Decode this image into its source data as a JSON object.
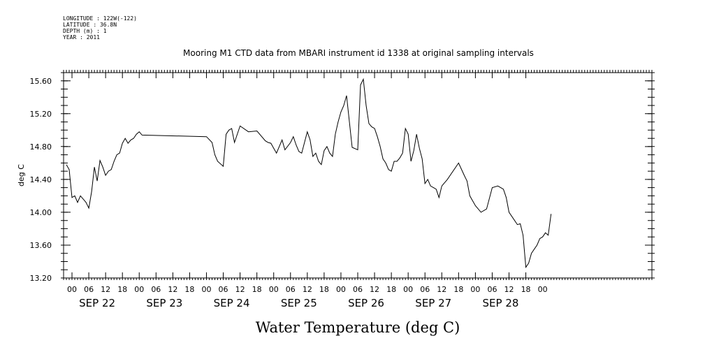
{
  "header": {
    "longitude": "LONGITUDE : 122W(-122)",
    "latitude": "LATITUDE : 36.8N",
    "depth": "DEPTH (m) : 1",
    "year": "YEAR : 2011"
  },
  "chart_data": {
    "type": "line",
    "title": "Mooring M1 CTD data from MBARI instrument id 1338 at original sampling intervals",
    "xlabel": "Water Temperature (deg C)",
    "ylabel": "deg C",
    "grid": false,
    "ylim": [
      13.2,
      15.7
    ],
    "xlim_hours": [
      -3,
      207
    ],
    "y_ticks": [
      "13.20",
      "13.60",
      "14.00",
      "14.40",
      "14.80",
      "15.20",
      "15.60"
    ],
    "hour_ticks": [
      "00",
      "06",
      "12",
      "18"
    ],
    "days": [
      "SEP 22",
      "SEP 23",
      "SEP 24",
      "SEP 25",
      "SEP 26",
      "SEP 27",
      "SEP 28"
    ],
    "series": [
      {
        "x": [
          "2011-09-22T00:00",
          "2011-09-22T01:00",
          "2011-09-22T02:00",
          "2011-09-22T03:00",
          "2011-09-22T04:00",
          "2011-09-22T05:00",
          "2011-09-22T06:00",
          "2011-09-22T07:00",
          "2011-09-22T08:00",
          "2011-09-22T09:00",
          "2011-09-22T10:00",
          "2011-09-22T11:00",
          "2011-09-22T12:00",
          "2011-09-22T13:00",
          "2011-09-22T14:00",
          "2011-09-22T15:00",
          "2011-09-22T16:00",
          "2011-09-22T17:00",
          "2011-09-22T18:00",
          "2011-09-22T19:00",
          "2011-09-22T20:00",
          "2011-09-22T21:00",
          "2011-09-22T22:00",
          "2011-09-22T23:00",
          "2011-09-23T00:00",
          "2011-09-23T01:00",
          "2011-09-23T02:00",
          "2011-09-23T03:00",
          "2011-09-23T18:00",
          "2011-09-23T20:00",
          "2011-09-23T21:00",
          "2011-09-23T22:00",
          "2011-09-24T00:00",
          "2011-09-24T01:00",
          "2011-09-24T02:00",
          "2011-09-24T03:00",
          "2011-09-24T04:00",
          "2011-09-24T06:00",
          "2011-09-24T09:00",
          "2011-09-24T12:00",
          "2011-09-24T15:00",
          "2011-09-24T16:00",
          "2011-09-24T17:00",
          "2011-09-24T18:00",
          "2011-09-24T19:00",
          "2011-09-24T20:00",
          "2011-09-24T21:00",
          "2011-09-24T22:00",
          "2011-09-25T00:00",
          "2011-09-25T01:00",
          "2011-09-25T02:00",
          "2011-09-25T03:00",
          "2011-09-25T04:00",
          "2011-09-25T05:00",
          "2011-09-25T06:00",
          "2011-09-25T07:00",
          "2011-09-25T08:00",
          "2011-09-25T09:00",
          "2011-09-25T10:00",
          "2011-09-25T11:00",
          "2011-09-25T12:00",
          "2011-09-25T13:00",
          "2011-09-25T14:00",
          "2011-09-25T15:00",
          "2011-09-25T16:00",
          "2011-09-25T17:00",
          "2011-09-25T18:00",
          "2011-09-25T19:00",
          "2011-09-25T20:00",
          "2011-09-25T22:00",
          "2011-09-26T00:00",
          "2011-09-26T01:00",
          "2011-09-26T02:00",
          "2011-09-26T03:00",
          "2011-09-26T04:00",
          "2011-09-26T05:00",
          "2011-09-26T06:00",
          "2011-09-26T07:00",
          "2011-09-26T08:00",
          "2011-09-26T09:00",
          "2011-09-26T10:00",
          "2011-09-26T11:00",
          "2011-09-26T12:00",
          "2011-09-26T13:00",
          "2011-09-26T14:00",
          "2011-09-26T15:00",
          "2011-09-26T16:00",
          "2011-09-26T17:00",
          "2011-09-26T18:00",
          "2011-09-26T19:00",
          "2011-09-26T20:00",
          "2011-09-26T21:00",
          "2011-09-26T22:00",
          "2011-09-26T23:00",
          "2011-09-27T00:00",
          "2011-09-27T01:00",
          "2011-09-27T02:00",
          "2011-09-27T03:00",
          "2011-09-27T04:00",
          "2011-09-27T05:00",
          "2011-09-27T06:00",
          "2011-09-27T08:00",
          "2011-09-27T12:00",
          "2011-09-27T14:00",
          "2011-09-27T15:00",
          "2011-09-27T16:00",
          "2011-09-27T18:00",
          "2011-09-27T20:00",
          "2011-09-27T22:00",
          "2011-09-28T00:00",
          "2011-09-28T02:00",
          "2011-09-28T03:00",
          "2011-09-28T04:00",
          "2011-09-28T05:00",
          "2011-09-28T06:00",
          "2011-09-28T08:00",
          "2011-09-28T09:00",
          "2011-09-28T10:00",
          "2011-09-28T11:00",
          "2011-09-28T12:00",
          "2011-09-28T13:00",
          "2011-09-28T14:00",
          "2011-09-28T15:00",
          "2011-09-28T16:00",
          "2011-09-28T17:00",
          "2011-09-28T18:00",
          "2011-09-28T19:00",
          "2011-09-28T20:00",
          "2011-09-28T21:00"
        ],
        "hours": [
          -2,
          -1,
          0,
          1,
          2,
          3,
          4,
          5,
          6,
          7,
          8,
          9,
          10,
          11,
          12,
          13,
          14,
          15,
          16,
          17,
          18,
          19,
          20,
          21,
          22,
          23,
          24,
          25,
          48,
          50,
          51,
          52,
          54,
          55,
          56,
          57,
          58,
          60,
          63,
          66,
          69,
          70,
          71,
          72,
          73,
          74,
          75,
          76,
          78,
          79,
          80,
          81,
          82,
          83,
          84,
          85,
          86,
          87,
          88,
          89,
          90,
          91,
          92,
          93,
          94,
          95,
          96,
          97,
          98,
          100,
          102,
          103,
          104,
          105,
          106,
          107,
          108,
          109,
          110,
          111,
          112,
          113,
          114,
          115,
          116,
          117,
          118,
          119,
          120,
          121,
          122,
          123,
          124,
          125,
          126,
          127,
          128,
          129,
          130,
          131,
          132,
          134,
          138,
          140,
          141,
          142,
          144,
          146,
          148,
          150,
          152,
          153,
          154,
          155,
          156,
          158,
          159,
          160,
          161,
          162,
          163,
          164,
          165,
          166,
          167,
          168,
          169,
          170,
          171
        ],
        "values": [
          14.58,
          14.52,
          14.18,
          14.2,
          14.12,
          14.2,
          14.16,
          14.12,
          14.05,
          14.25,
          14.55,
          14.38,
          14.63,
          14.55,
          14.45,
          14.5,
          14.52,
          14.62,
          14.7,
          14.72,
          14.84,
          14.9,
          14.84,
          14.88,
          14.9,
          14.95,
          14.98,
          14.94,
          14.92,
          14.85,
          14.7,
          14.62,
          14.56,
          14.95,
          15.0,
          15.02,
          14.85,
          15.05,
          14.98,
          14.99,
          14.87,
          14.85,
          14.84,
          14.78,
          14.72,
          14.8,
          14.88,
          14.76,
          14.85,
          14.92,
          14.82,
          14.74,
          14.72,
          14.85,
          14.98,
          14.88,
          14.68,
          14.72,
          14.62,
          14.58,
          14.75,
          14.8,
          14.72,
          14.68,
          14.95,
          15.1,
          15.22,
          15.3,
          15.42,
          14.79,
          14.76,
          15.55,
          15.62,
          15.3,
          15.08,
          15.04,
          15.02,
          14.92,
          14.8,
          14.65,
          14.6,
          14.52,
          14.5,
          14.62,
          14.62,
          14.66,
          14.72,
          15.02,
          14.95,
          14.62,
          14.75,
          14.95,
          14.78,
          14.65,
          14.35,
          14.4,
          14.32,
          14.3,
          14.28,
          14.18,
          14.32,
          14.4,
          14.6,
          14.45,
          14.38,
          14.2,
          14.08,
          14.0,
          14.04,
          14.3,
          14.32,
          14.3,
          14.28,
          14.18,
          14.0,
          13.9,
          13.85,
          13.86,
          13.72,
          13.33,
          13.38,
          13.5,
          13.55,
          13.6,
          13.68,
          13.7,
          13.75,
          13.72,
          13.98
        ]
      }
    ]
  }
}
